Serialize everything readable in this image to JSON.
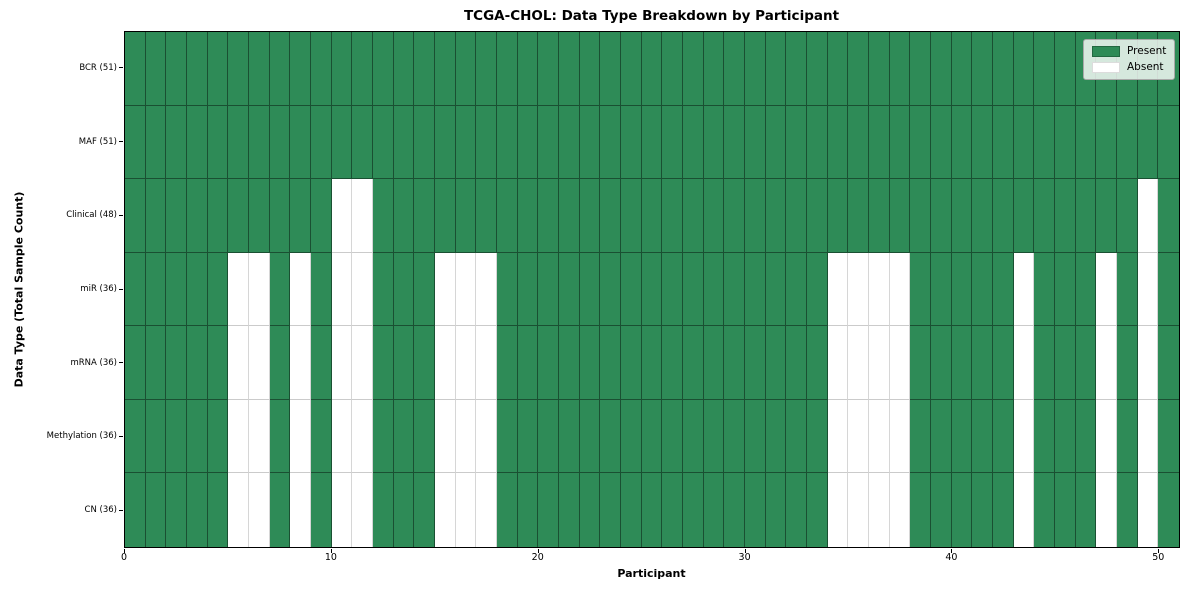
{
  "chart_data": {
    "type": "heatmap",
    "title": "TCGA-CHOL: Data Type Breakdown by Participant",
    "xlabel": "Participant",
    "ylabel": "Data Type (Total Sample Count)",
    "x_ticks": [
      0,
      10,
      20,
      30,
      40,
      50
    ],
    "n_participants": 51,
    "grid": true,
    "present_color": "#2e8b57",
    "absent_color": "#ffffff",
    "legend": {
      "position": "upper right",
      "entries": [
        {
          "label": "Present",
          "color": "#2e8b57"
        },
        {
          "label": "Absent",
          "color": "#ffffff"
        }
      ]
    },
    "rows": [
      {
        "label": "BCR (51)",
        "total_sample_count": 51,
        "absent_participants": []
      },
      {
        "label": "MAF (51)",
        "total_sample_count": 51,
        "absent_participants": []
      },
      {
        "label": "Clinical (48)",
        "total_sample_count": 48,
        "absent_participants": [
          10,
          11,
          49
        ]
      },
      {
        "label": "miR (36)",
        "total_sample_count": 36,
        "absent_participants": [
          5,
          6,
          8,
          10,
          11,
          15,
          16,
          17,
          34,
          35,
          36,
          37,
          43,
          47,
          49
        ]
      },
      {
        "label": "mRNA (36)",
        "total_sample_count": 36,
        "absent_participants": [
          5,
          6,
          8,
          10,
          11,
          15,
          16,
          17,
          34,
          35,
          36,
          37,
          43,
          47,
          49
        ]
      },
      {
        "label": "Methylation (36)",
        "total_sample_count": 36,
        "absent_participants": [
          5,
          6,
          8,
          10,
          11,
          15,
          16,
          17,
          34,
          35,
          36,
          37,
          43,
          47,
          49
        ]
      },
      {
        "label": "CN (36)",
        "total_sample_count": 36,
        "absent_participants": [
          5,
          6,
          8,
          10,
          11,
          15,
          16,
          17,
          34,
          35,
          36,
          37,
          43,
          47,
          49
        ]
      }
    ]
  }
}
